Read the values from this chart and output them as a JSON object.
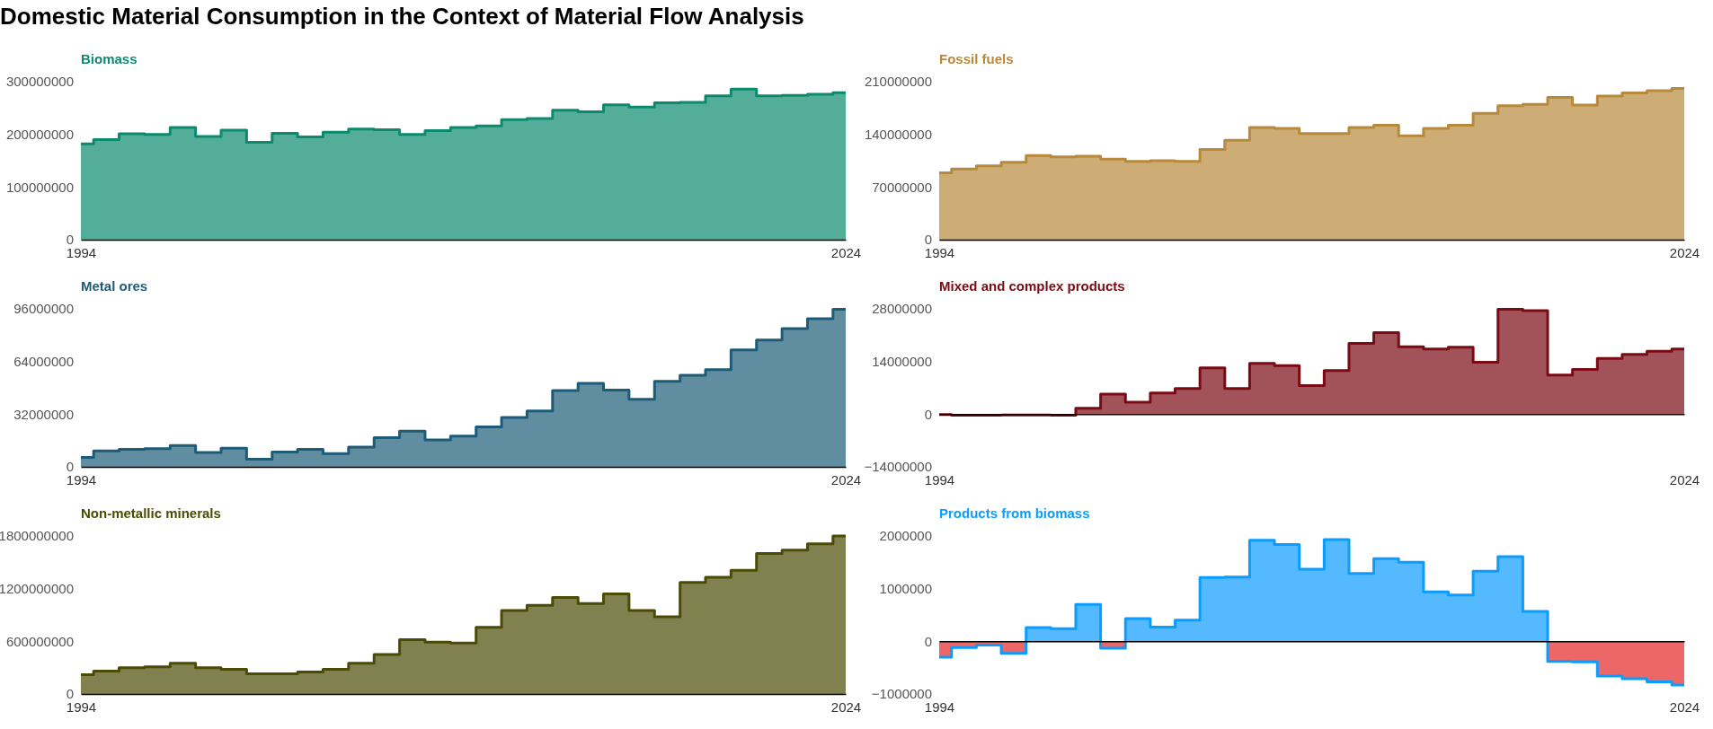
{
  "chart_data": [
    {
      "type": "other",
      "title": "Domestic Material Consumption in the Context of Material Flow Analysis"
    },
    {
      "type": "area",
      "title": "Biomass",
      "color": "#0b8a6e",
      "x": [
        "1994",
        "1995",
        "1996",
        "1997",
        "1998",
        "1999",
        "2000",
        "2001",
        "2002",
        "2003",
        "2004",
        "2005",
        "2006",
        "2007",
        "2008",
        "2009",
        "2010",
        "2011",
        "2012",
        "2013",
        "2014",
        "2015",
        "2016",
        "2017",
        "2018",
        "2019",
        "2020",
        "2021",
        "2022",
        "2023",
        "2024"
      ],
      "values": [
        182000000,
        190000000,
        201000000,
        200000000,
        213000000,
        196000000,
        208000000,
        185000000,
        202000000,
        195000000,
        204000000,
        210000000,
        209000000,
        200000000,
        207000000,
        213000000,
        216000000,
        228000000,
        230000000,
        246000000,
        243000000,
        256000000,
        252000000,
        260000000,
        261000000,
        273000000,
        286000000,
        273000000,
        274000000,
        276000000,
        279000000
      ],
      "xlim": [
        "1994",
        "2024"
      ],
      "xticks": [
        "1994",
        "2024"
      ],
      "ylim": [
        0,
        300000000
      ],
      "yticks": [
        0,
        100000000,
        200000000,
        300000000
      ]
    },
    {
      "type": "area",
      "title": "Fossil fuels",
      "color": "#b8893a",
      "x": [
        "1994",
        "1995",
        "1996",
        "1997",
        "1998",
        "1999",
        "2000",
        "2001",
        "2002",
        "2003",
        "2004",
        "2005",
        "2006",
        "2007",
        "2008",
        "2009",
        "2010",
        "2011",
        "2012",
        "2013",
        "2014",
        "2015",
        "2016",
        "2017",
        "2018",
        "2019",
        "2020",
        "2021",
        "2022",
        "2023",
        "2024"
      ],
      "values": [
        89000000,
        94000000,
        98000000,
        103000000,
        112000000,
        110000000,
        111000000,
        107000000,
        104000000,
        105000000,
        104000000,
        120000000,
        132000000,
        149000000,
        148000000,
        141000000,
        141000000,
        149000000,
        152000000,
        138000000,
        148000000,
        152000000,
        168000000,
        178000000,
        180000000,
        189000000,
        179000000,
        191000000,
        195000000,
        198000000,
        201000000
      ],
      "xlim": [
        "1994",
        "2024"
      ],
      "xticks": [
        "1994",
        "2024"
      ],
      "ylim": [
        0,
        210000000
      ],
      "yticks": [
        0,
        70000000,
        140000000,
        210000000
      ]
    },
    {
      "type": "area",
      "title": "Metal ores",
      "color": "#1d5c78",
      "x": [
        "1994",
        "1995",
        "1996",
        "1997",
        "1998",
        "1999",
        "2000",
        "2001",
        "2002",
        "2003",
        "2004",
        "2005",
        "2006",
        "2007",
        "2008",
        "2009",
        "2010",
        "2011",
        "2012",
        "2013",
        "2014",
        "2015",
        "2016",
        "2017",
        "2018",
        "2019",
        "2020",
        "2021",
        "2022",
        "2023",
        "2024"
      ],
      "values": [
        5700000,
        9700000,
        10700000,
        11000000,
        13000000,
        8700000,
        11300000,
        4700000,
        9000000,
        10700000,
        8000000,
        12000000,
        17700000,
        21700000,
        16300000,
        18700000,
        24300000,
        30000000,
        34000000,
        46300000,
        50700000,
        46700000,
        41000000,
        52000000,
        55700000,
        59000000,
        71000000,
        77000000,
        84000000,
        90000000,
        95700000
      ],
      "xlim": [
        "1994",
        "2024"
      ],
      "xticks": [
        "1994",
        "2024"
      ],
      "ylim": [
        0,
        96000000
      ],
      "yticks": [
        0,
        32000000,
        64000000,
        96000000
      ]
    },
    {
      "type": "area",
      "title": "Mixed and complex products",
      "color": "#7a0a13",
      "x": [
        "1994",
        "1995",
        "1996",
        "1997",
        "1998",
        "1999",
        "2000",
        "2001",
        "2002",
        "2003",
        "2004",
        "2005",
        "2006",
        "2007",
        "2008",
        "2009",
        "2010",
        "2011",
        "2012",
        "2013",
        "2014",
        "2015",
        "2016",
        "2017",
        "2018",
        "2019",
        "2020",
        "2021",
        "2022",
        "2023",
        "2024"
      ],
      "values": [
        -100000,
        -300000,
        -300000,
        -200000,
        -200000,
        -300000,
        1600000,
        5300000,
        3200000,
        5600000,
        6800000,
        12300000,
        6800000,
        13500000,
        12900000,
        7600000,
        11600000,
        18800000,
        21700000,
        17900000,
        17300000,
        17800000,
        13800000,
        27900000,
        27500000,
        10400000,
        11900000,
        14800000,
        15900000,
        16700000,
        17300000
      ],
      "xlim": [
        "1994",
        "2024"
      ],
      "xticks": [
        "1994",
        "2024"
      ],
      "ylim": [
        -14000000,
        28000000
      ],
      "yticks": [
        -14000000,
        0,
        14000000,
        28000000
      ]
    },
    {
      "type": "area",
      "title": "Non-metallic minerals",
      "color": "#4b4b05",
      "x": [
        "1994",
        "1995",
        "1996",
        "1997",
        "1998",
        "1999",
        "2000",
        "2001",
        "2002",
        "2003",
        "2004",
        "2005",
        "2006",
        "2007",
        "2008",
        "2009",
        "2010",
        "2011",
        "2012",
        "2013",
        "2014",
        "2015",
        "2016",
        "2017",
        "2018",
        "2019",
        "2020",
        "2021",
        "2022",
        "2023",
        "2024"
      ],
      "values": [
        220000000,
        260000000,
        300000000,
        310000000,
        350000000,
        300000000,
        280000000,
        230000000,
        230000000,
        250000000,
        280000000,
        350000000,
        450000000,
        620000000,
        590000000,
        580000000,
        760000000,
        950000000,
        1010000000,
        1100000000,
        1030000000,
        1140000000,
        950000000,
        880000000,
        1270000000,
        1330000000,
        1410000000,
        1600000000,
        1640000000,
        1710000000,
        1800000000
      ],
      "xlim": [
        "1994",
        "2024"
      ],
      "xticks": [
        "1994",
        "2024"
      ],
      "ylim": [
        0,
        1800000000
      ],
      "yticks": [
        0,
        600000000,
        1200000000,
        1800000000
      ]
    },
    {
      "type": "area",
      "title": "Products from biomass",
      "color": "#0a9dff",
      "x": [
        "1994",
        "1995",
        "1996",
        "1997",
        "1998",
        "1999",
        "2000",
        "2001",
        "2002",
        "2003",
        "2004",
        "2005",
        "2006",
        "2007",
        "2008",
        "2009",
        "2010",
        "2011",
        "2012",
        "2013",
        "2014",
        "2015",
        "2016",
        "2017",
        "2018",
        "2019",
        "2020",
        "2021",
        "2022",
        "2023",
        "2024"
      ],
      "values": [
        -300000,
        -120000,
        -70000,
        -230000,
        260000,
        240000,
        700000,
        -130000,
        430000,
        270000,
        400000,
        1210000,
        1220000,
        1920000,
        1840000,
        1370000,
        1930000,
        1290000,
        1570000,
        1500000,
        940000,
        880000,
        1330000,
        1610000,
        570000,
        -380000,
        -390000,
        -660000,
        -710000,
        -770000,
        -830000
      ],
      "colors": [
        "#ec6868",
        "#ec6868",
        "#ec6868",
        "#ec6868",
        "#55b9ff",
        "#55b9ff",
        "#55b9ff",
        "#ec6868",
        "#55b9ff",
        "#55b9ff",
        "#55b9ff",
        "#55b9ff",
        "#55b9ff",
        "#55b9ff",
        "#55b9ff",
        "#55b9ff",
        "#55b9ff",
        "#55b9ff",
        "#55b9ff",
        "#55b9ff",
        "#55b9ff",
        "#55b9ff",
        "#55b9ff",
        "#55b9ff",
        "#55b9ff",
        "#ec6868",
        "#ec6868",
        "#ec6868",
        "#ec6868",
        "#ec6868",
        "#ec6868"
      ],
      "xlim": [
        "1994",
        "2024"
      ],
      "xticks": [
        "1994",
        "2024"
      ],
      "ylim": [
        -1000000,
        2000000
      ],
      "yticks": [
        -1000000,
        0,
        1000000,
        2000000
      ]
    }
  ]
}
